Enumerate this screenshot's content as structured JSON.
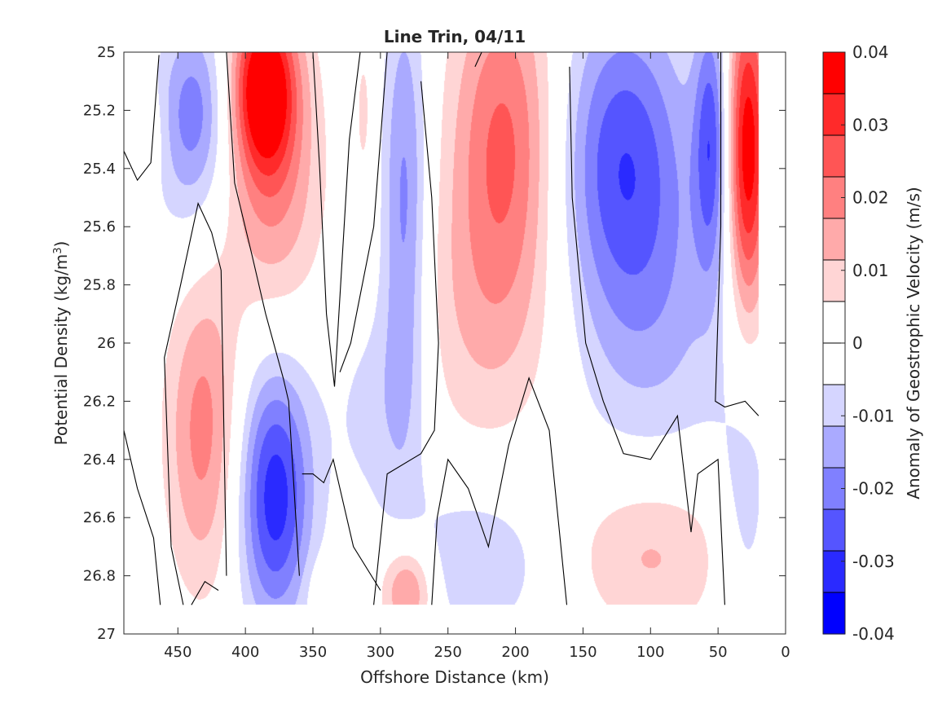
{
  "chart_data": {
    "type": "heatmap",
    "title": "Line Trin, 04/11",
    "xlabel": "Offshore Distance (km)",
    "ylabel_prefix": "Potential Density (kg/m",
    "ylabel_sup": "3",
    "ylabel_suffix": ")",
    "colorbar_label": "Anomaly of Geostrophic Velocity (m/s)",
    "xlim": [
      490,
      0
    ],
    "ylim": [
      25,
      27
    ],
    "x_reversed": true,
    "y_reversed": true,
    "x_ticks": [
      450,
      400,
      350,
      300,
      250,
      200,
      150,
      100,
      50,
      0
    ],
    "y_ticks": [
      25,
      25.2,
      25.4,
      25.6,
      25.8,
      26,
      26.2,
      26.4,
      26.6,
      26.8,
      27
    ],
    "y_tick_labels": [
      "25",
      "25.2",
      "25.4",
      "25.6",
      "25.8",
      "26",
      "26.2",
      "26.4",
      "26.6",
      "26.8",
      "27"
    ],
    "color_range": [
      -0.04,
      0.04
    ],
    "colorbar_ticks": [
      0.04,
      0.03,
      0.02,
      0.01,
      0,
      -0.01,
      -0.02,
      -0.03,
      -0.04
    ],
    "colorbar_tick_labels": [
      "0.04",
      "0.03",
      "0.02",
      "0.01",
      "0",
      "-0.01",
      "-0.02",
      "-0.03",
      "-0.04"
    ],
    "colorbar_colors": [
      "#ff0000",
      "#ff2a2a",
      "#ff5555",
      "#ff8080",
      "#ffaaaa",
      "#ffd5d5",
      "#ffffff",
      "#ffffff",
      "#d5d5ff",
      "#aaaaff",
      "#8080ff",
      "#5555ff",
      "#2a2aff",
      "#0000ff"
    ],
    "grid": false,
    "features": [
      {
        "x": 472,
        "y": 25.28,
        "sx": 10,
        "sy": 0.12,
        "v": 0.006
      },
      {
        "x": 438,
        "y": 25.18,
        "sx": 18,
        "sy": 0.22,
        "v": -0.016
      },
      {
        "x": 440,
        "y": 25.4,
        "sx": 24,
        "sy": 0.28,
        "v": -0.007
      },
      {
        "x": 430,
        "y": 26.3,
        "sx": 20,
        "sy": 0.38,
        "v": 0.021
      },
      {
        "x": 386,
        "y": 25.12,
        "sx": 16,
        "sy": 0.2,
        "v": 0.038
      },
      {
        "x": 380,
        "y": 25.5,
        "sx": 26,
        "sy": 0.42,
        "v": 0.02
      },
      {
        "x": 378,
        "y": 26.55,
        "sx": 18,
        "sy": 0.3,
        "v": -0.026
      },
      {
        "x": 382,
        "y": 26.2,
        "sx": 28,
        "sy": 0.45,
        "v": -0.01
      },
      {
        "x": 282,
        "y": 25.55,
        "sx": 12,
        "sy": 0.55,
        "v": -0.02
      },
      {
        "x": 300,
        "y": 26.2,
        "sx": 25,
        "sy": 0.28,
        "v": -0.009
      },
      {
        "x": 312,
        "y": 25.2,
        "sx": 5,
        "sy": 0.2,
        "v": 0.007
      },
      {
        "x": 280,
        "y": 26.85,
        "sx": 14,
        "sy": 0.12,
        "v": 0.022
      },
      {
        "x": 340,
        "y": 26.85,
        "sx": 10,
        "sy": 0.08,
        "v": 0.006
      },
      {
        "x": 208,
        "y": 25.3,
        "sx": 28,
        "sy": 0.42,
        "v": 0.024
      },
      {
        "x": 225,
        "y": 25.95,
        "sx": 48,
        "sy": 0.35,
        "v": 0.009
      },
      {
        "x": 230,
        "y": 26.75,
        "sx": 40,
        "sy": 0.2,
        "v": -0.011
      },
      {
        "x": 120,
        "y": 25.35,
        "sx": 34,
        "sy": 0.38,
        "v": -0.026
      },
      {
        "x": 100,
        "y": 25.95,
        "sx": 48,
        "sy": 0.38,
        "v": -0.011
      },
      {
        "x": 100,
        "y": 26.72,
        "sx": 42,
        "sy": 0.2,
        "v": 0.013
      },
      {
        "x": 55,
        "y": 25.3,
        "sx": 9,
        "sy": 0.32,
        "v": -0.024
      },
      {
        "x": 28,
        "y": 25.35,
        "sx": 11,
        "sy": 0.4,
        "v": 0.04
      },
      {
        "x": 30,
        "y": 26.6,
        "sx": 14,
        "sy": 0.3,
        "v": -0.009
      }
    ],
    "data_extent": {
      "x": [
        490,
        20
      ],
      "y": [
        25,
        26.9
      ]
    },
    "zero_contours": [
      [
        [
          490,
          25.34
        ],
        [
          480,
          25.44
        ],
        [
          470,
          25.38
        ],
        [
          464,
          25.01
        ]
      ],
      [
        [
          490,
          26.3
        ],
        [
          480,
          26.5
        ],
        [
          468,
          26.67
        ],
        [
          463,
          26.9
        ]
      ],
      [
        [
          440,
          26.9
        ],
        [
          430,
          26.82
        ],
        [
          420,
          26.85
        ]
      ],
      [
        [
          446,
          26.9
        ],
        [
          455,
          26.7
        ],
        [
          460,
          26.05
        ],
        [
          448,
          25.8
        ],
        [
          435,
          25.52
        ],
        [
          425,
          25.62
        ],
        [
          418,
          25.75
        ],
        [
          414,
          26.8
        ]
      ],
      [
        [
          414,
          25.0
        ],
        [
          408,
          25.45
        ],
        [
          395,
          25.7
        ],
        [
          385,
          25.9
        ],
        [
          372,
          26.12
        ],
        [
          368,
          26.2
        ],
        [
          360,
          26.8
        ]
      ],
      [
        [
          350,
          25.0
        ],
        [
          345,
          25.4
        ],
        [
          340,
          25.9
        ],
        [
          334,
          26.15
        ],
        [
          323,
          25.3
        ],
        [
          315,
          25.0
        ]
      ],
      [
        [
          358,
          26.45
        ],
        [
          350,
          26.45
        ],
        [
          342,
          26.48
        ],
        [
          335,
          26.4
        ],
        [
          320,
          26.7
        ],
        [
          300,
          26.85
        ]
      ],
      [
        [
          295,
          25.0
        ],
        [
          305,
          25.6
        ],
        [
          322,
          26.0
        ],
        [
          330,
          26.1
        ]
      ],
      [
        [
          270,
          25.1
        ],
        [
          262,
          25.5
        ],
        [
          257,
          26.0
        ],
        [
          260,
          26.3
        ],
        [
          270,
          26.38
        ],
        [
          295,
          26.45
        ],
        [
          305,
          26.9
        ]
      ],
      [
        [
          262,
          26.9
        ],
        [
          258,
          26.6
        ],
        [
          250,
          26.4
        ],
        [
          235,
          26.5
        ],
        [
          220,
          26.7
        ],
        [
          205,
          26.35
        ],
        [
          190,
          26.12
        ],
        [
          175,
          26.3
        ],
        [
          162,
          26.9
        ]
      ],
      [
        [
          230,
          25.05
        ],
        [
          225,
          25.0
        ]
      ],
      [
        [
          160,
          25.05
        ],
        [
          158,
          25.5
        ],
        [
          148,
          26.0
        ],
        [
          135,
          26.2
        ],
        [
          120,
          26.38
        ],
        [
          100,
          26.4
        ],
        [
          80,
          26.25
        ],
        [
          70,
          26.65
        ],
        [
          65,
          26.45
        ],
        [
          50,
          26.4
        ],
        [
          45,
          26.9
        ]
      ],
      [
        [
          48,
          25.0
        ],
        [
          48,
          25.6
        ],
        [
          52,
          26.2
        ],
        [
          45,
          26.22
        ],
        [
          30,
          26.2
        ],
        [
          20,
          26.25
        ]
      ]
    ]
  }
}
